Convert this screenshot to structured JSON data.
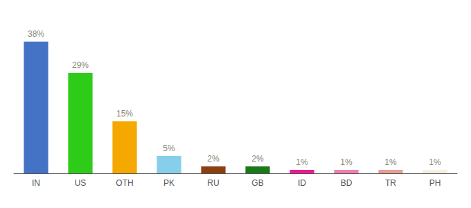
{
  "chart_data": {
    "type": "bar",
    "categories": [
      "IN",
      "US",
      "OTH",
      "PK",
      "RU",
      "GB",
      "ID",
      "BD",
      "TR",
      "PH"
    ],
    "values": [
      38,
      29,
      15,
      5,
      2,
      2,
      1,
      1,
      1,
      1
    ],
    "value_labels": [
      "38%",
      "29%",
      "15%",
      "5%",
      "2%",
      "2%",
      "1%",
      "1%",
      "1%",
      "1%"
    ],
    "colors": [
      "#4472c4",
      "#2ecc18",
      "#f5a800",
      "#87ceeb",
      "#8b4010",
      "#1a7a1a",
      "#f01890",
      "#f080b0",
      "#e8a090",
      "#f5f0dc"
    ],
    "ylim": [
      0,
      44
    ],
    "data_labels": true,
    "tick_labels": "x",
    "grid": false
  }
}
